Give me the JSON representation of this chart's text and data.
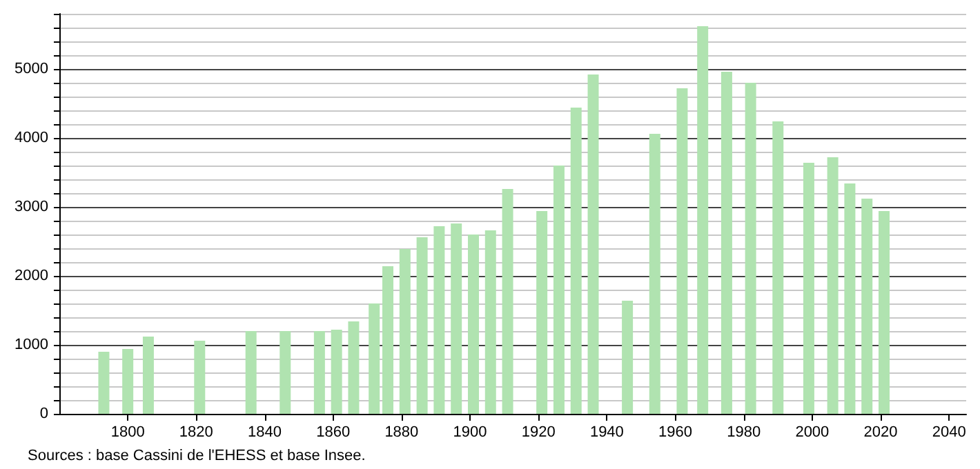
{
  "chart_data": {
    "type": "bar",
    "x": [
      1793,
      1800,
      1806,
      1821,
      1836,
      1846,
      1856,
      1861,
      1866,
      1872,
      1876,
      1881,
      1886,
      1891,
      1896,
      1901,
      1906,
      1911,
      1921,
      1926,
      1931,
      1936,
      1946,
      1954,
      1962,
      1968,
      1975,
      1982,
      1990,
      1999,
      2006,
      2011,
      2016,
      2021
    ],
    "values": [
      900,
      940,
      1120,
      1060,
      1200,
      1200,
      1200,
      1220,
      1340,
      1600,
      2140,
      2390,
      2560,
      2720,
      2760,
      2600,
      2660,
      3260,
      2940,
      3600,
      4440,
      4920,
      1640,
      4060,
      4720,
      5620,
      4960,
      4800,
      4240,
      3640,
      3720,
      3340,
      3120,
      2940
    ],
    "color": "#b0e3b0",
    "xlim": [
      1780,
      2045
    ],
    "xticks": [
      1800,
      1820,
      1840,
      1860,
      1880,
      1900,
      1920,
      1940,
      1960,
      1980,
      2000,
      2020,
      2040
    ],
    "ylim": [
      0,
      5800
    ],
    "yticks": [
      0,
      {
        "value": 200,
        "label": null
      },
      {
        "value": 400,
        "label": null
      },
      {
        "value": 600,
        "label": null
      },
      {
        "value": 800,
        "label": null
      },
      1000,
      {
        "value": 1200,
        "label": null
      },
      {
        "value": 1400,
        "label": null
      },
      {
        "value": 1600,
        "label": null
      },
      {
        "value": 1800,
        "label": null
      },
      2000,
      {
        "value": 2200,
        "label": null
      },
      {
        "value": 2400,
        "label": null
      },
      {
        "value": 2600,
        "label": null
      },
      {
        "value": 2800,
        "label": null
      },
      3000,
      {
        "value": 3200,
        "label": null
      },
      {
        "value": 3400,
        "label": null
      },
      {
        "value": 3600,
        "label": null
      },
      {
        "value": 3800,
        "label": null
      },
      4000,
      {
        "value": 4200,
        "label": null
      },
      {
        "value": 4400,
        "label": null
      },
      {
        "value": 4600,
        "label": null
      },
      {
        "value": 4800,
        "label": null
      },
      5000,
      {
        "value": 5200,
        "label": null
      },
      {
        "value": 5400,
        "label": null
      },
      {
        "value": 5600,
        "label": null
      },
      {
        "value": 5800,
        "label": null
      }
    ],
    "grid": "y",
    "annotations": [
      "Sources : base Cassini de l'EHESS et base Insee."
    ]
  }
}
